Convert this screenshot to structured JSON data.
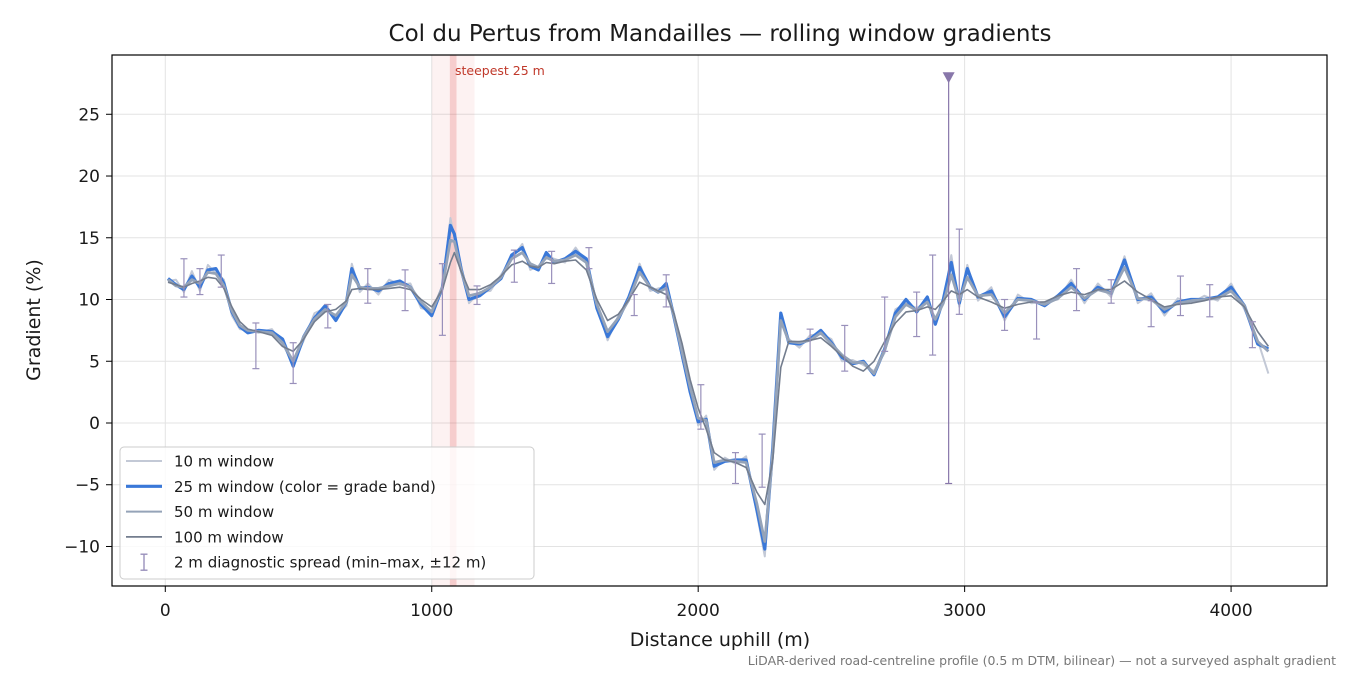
{
  "chart_data": {
    "type": "line",
    "title": "Col du Pertus from Mandailles — rolling window gradients",
    "xlabel": "Distance uphill (m)",
    "ylabel": "Gradient (%)",
    "xlim": [
      -200,
      4360
    ],
    "ylim": [
      -13.2,
      29.8
    ],
    "xticks": [
      0,
      1000,
      2000,
      3000,
      4000
    ],
    "yticks": [
      -10,
      -5,
      0,
      5,
      10,
      15,
      20,
      25
    ],
    "ytick_labels": [
      "−10",
      "−5",
      "0",
      "5",
      "10",
      "15",
      "20",
      "25"
    ],
    "grid": true,
    "legend_position": "lower-left",
    "footnote": "LiDAR-derived road-centreline profile (0.5 m DTM, bilinear) — not a surveyed asphalt gradient",
    "steepest_annotation": {
      "label": "steepest 25 m",
      "x_start": 1068,
      "x_end": 1093,
      "color": "#d62728"
    },
    "spike_marker": {
      "x": 2940,
      "y": 28.0,
      "low": -4.9,
      "high": 28.0,
      "color": "#8877aa"
    },
    "colors": {
      "w10": "#c3c9d6",
      "w25": "#3a78d8",
      "w50": "#95a3b8",
      "w100": "#737d8e",
      "errorbar": "#9990bb"
    },
    "legend": [
      {
        "key": "w10",
        "label": "10 m window"
      },
      {
        "key": "w25",
        "label": "25 m window (color = grade band)"
      },
      {
        "key": "w50",
        "label": "50 m window"
      },
      {
        "key": "w100",
        "label": "100 m window"
      },
      {
        "key": "errorbar",
        "label": "2 m diagnostic spread (min–max, ±12 m)"
      }
    ],
    "profile": {
      "x": [
        10,
        40,
        70,
        100,
        130,
        160,
        190,
        220,
        250,
        280,
        310,
        350,
        400,
        440,
        480,
        520,
        560,
        600,
        640,
        680,
        700,
        730,
        760,
        800,
        840,
        880,
        920,
        960,
        1000,
        1040,
        1070,
        1085,
        1110,
        1140,
        1180,
        1220,
        1260,
        1300,
        1340,
        1370,
        1400,
        1430,
        1460,
        1500,
        1540,
        1580,
        1620,
        1660,
        1700,
        1740,
        1780,
        1820,
        1850,
        1880,
        1910,
        1940,
        1970,
        2000,
        2030,
        2060,
        2100,
        2140,
        2180,
        2220,
        2250,
        2280,
        2310,
        2340,
        2380,
        2420,
        2460,
        2500,
        2540,
        2580,
        2620,
        2660,
        2700,
        2740,
        2780,
        2820,
        2860,
        2890,
        2920,
        2950,
        2980,
        3010,
        3050,
        3100,
        3150,
        3200,
        3250,
        3300,
        3350,
        3400,
        3450,
        3500,
        3550,
        3600,
        3650,
        3700,
        3750,
        3800,
        3850,
        3900,
        3950,
        4000,
        4050,
        4100,
        4140
      ],
      "y25": [
        11.7,
        11.2,
        10.8,
        11.9,
        11.0,
        12.4,
        12.5,
        11.3,
        9.0,
        7.8,
        7.3,
        7.5,
        7.4,
        6.8,
        4.6,
        7.0,
        8.5,
        9.5,
        8.3,
        9.8,
        12.5,
        10.9,
        11.0,
        10.7,
        11.3,
        11.5,
        11.0,
        9.6,
        8.7,
        11.0,
        16.0,
        15.3,
        12.5,
        10.0,
        10.3,
        11.0,
        11.7,
        13.6,
        14.2,
        12.7,
        12.4,
        13.8,
        13.0,
        13.3,
        13.9,
        13.3,
        9.3,
        7.0,
        8.4,
        10.2,
        12.6,
        11.0,
        10.6,
        11.3,
        8.5,
        5.5,
        2.5,
        0.1,
        0.3,
        -3.5,
        -3.1,
        -3.0,
        -3.0,
        -7.0,
        -10.2,
        -2.0,
        8.9,
        6.5,
        6.4,
        6.8,
        7.5,
        6.5,
        5.3,
        4.8,
        5.0,
        3.9,
        6.0,
        8.9,
        10.0,
        9.0,
        10.2,
        8.0,
        10.0,
        13.0,
        9.7,
        12.5,
        10.2,
        10.7,
        8.6,
        10.1,
        10.0,
        9.5,
        10.3,
        11.3,
        10.0,
        11.0,
        10.5,
        13.2,
        10.0,
        10.2,
        9.0,
        9.8,
        10.0,
        10.0,
        10.2,
        11.0,
        9.5,
        6.4,
        6.0
      ],
      "y10": [
        11.5,
        11.6,
        10.6,
        12.3,
        10.7,
        12.8,
        12.1,
        11.6,
        8.7,
        7.6,
        7.5,
        7.3,
        7.6,
        6.4,
        4.8,
        6.7,
        8.9,
        9.3,
        8.6,
        9.5,
        12.9,
        10.6,
        11.3,
        10.4,
        11.6,
        11.2,
        11.3,
        9.3,
        9.1,
        10.7,
        16.6,
        15.0,
        12.8,
        9.7,
        10.6,
        10.7,
        12.0,
        13.3,
        14.5,
        12.4,
        12.7,
        13.5,
        13.3,
        13.0,
        14.2,
        13.0,
        9.6,
        6.7,
        8.7,
        9.9,
        12.9,
        10.7,
        10.9,
        11.0,
        8.8,
        5.2,
        2.8,
        -0.2,
        0.6,
        -3.8,
        -2.8,
        -3.3,
        -2.7,
        -7.3,
        -10.8,
        -1.7,
        8.6,
        6.8,
        6.1,
        7.1,
        7.2,
        6.8,
        5.0,
        5.1,
        4.7,
        4.2,
        5.7,
        9.2,
        9.7,
        9.3,
        9.9,
        8.3,
        9.7,
        13.6,
        9.4,
        12.8,
        9.9,
        11.0,
        8.3,
        10.4,
        9.7,
        9.8,
        10.0,
        11.6,
        9.7,
        11.3,
        10.2,
        13.5,
        9.7,
        10.5,
        8.7,
        10.1,
        9.7,
        10.3,
        9.9,
        11.3,
        9.2,
        6.7,
        4.0
      ],
      "y50": [
        11.6,
        11.1,
        11.0,
        11.6,
        11.3,
        12.2,
        12.1,
        11.1,
        9.1,
        7.9,
        7.5,
        7.4,
        7.3,
        6.5,
        5.0,
        7.0,
        8.4,
        9.2,
        8.7,
        9.8,
        12.0,
        11.0,
        10.9,
        10.9,
        11.1,
        11.3,
        11.0,
        9.8,
        9.0,
        11.0,
        14.8,
        14.7,
        12.4,
        10.3,
        10.5,
        11.0,
        11.8,
        13.3,
        13.8,
        12.9,
        12.6,
        13.4,
        13.1,
        13.2,
        13.6,
        13.0,
        9.6,
        7.4,
        8.5,
        10.0,
        12.2,
        11.0,
        10.6,
        10.9,
        8.6,
        5.7,
        2.9,
        0.4,
        0.2,
        -3.2,
        -3.0,
        -3.1,
        -3.2,
        -6.5,
        -9.6,
        -2.4,
        8.3,
        6.6,
        6.5,
        6.7,
        7.3,
        6.4,
        5.5,
        4.9,
        4.9,
        4.0,
        5.9,
        8.6,
        9.6,
        9.1,
        9.8,
        8.4,
        9.7,
        12.0,
        9.9,
        11.8,
        10.3,
        10.4,
        8.9,
        10.0,
        9.9,
        9.6,
        10.1,
        11.0,
        10.1,
        10.8,
        10.5,
        12.6,
        10.1,
        10.0,
        9.2,
        9.7,
        9.9,
        10.0,
        10.1,
        10.7,
        9.5,
        6.6,
        5.8
      ],
      "y100": [
        11.4,
        11.2,
        11.0,
        11.3,
        11.5,
        11.8,
        11.7,
        10.9,
        9.4,
        8.2,
        7.6,
        7.4,
        7.1,
        6.2,
        5.8,
        6.8,
        8.2,
        9.0,
        9.2,
        9.9,
        10.8,
        10.9,
        10.8,
        10.8,
        10.9,
        11.0,
        10.8,
        10.0,
        9.4,
        10.8,
        13.0,
        13.8,
        12.3,
        10.8,
        10.8,
        11.2,
        11.9,
        12.8,
        13.1,
        12.7,
        12.6,
        13.0,
        12.9,
        13.1,
        13.2,
        12.4,
        10.0,
        8.3,
        8.8,
        10.0,
        11.4,
        11.0,
        10.7,
        10.4,
        8.8,
        6.4,
        3.5,
        1.2,
        -0.5,
        -2.4,
        -3.0,
        -3.2,
        -3.6,
        -5.6,
        -6.6,
        -3.0,
        4.5,
        6.6,
        6.6,
        6.7,
        6.9,
        6.2,
        5.4,
        4.6,
        4.2,
        5.0,
        6.6,
        8.1,
        9.0,
        9.1,
        9.4,
        9.2,
        9.9,
        10.7,
        10.4,
        10.8,
        10.2,
        9.8,
        9.3,
        9.6,
        9.8,
        9.8,
        10.3,
        10.6,
        10.4,
        10.8,
        10.8,
        11.5,
        10.6,
        10.0,
        9.4,
        9.6,
        9.7,
        9.9,
        10.2,
        10.3,
        9.4,
        7.4,
        6.2
      ]
    },
    "error_bars": [
      {
        "x": 70,
        "low": 10.2,
        "high": 13.3
      },
      {
        "x": 130,
        "low": 10.4,
        "high": 12.5
      },
      {
        "x": 210,
        "low": 11.0,
        "high": 13.6
      },
      {
        "x": 340,
        "low": 4.4,
        "high": 8.1
      },
      {
        "x": 480,
        "low": 3.2,
        "high": 6.5
      },
      {
        "x": 610,
        "low": 7.7,
        "high": 9.6
      },
      {
        "x": 760,
        "low": 9.7,
        "high": 12.5
      },
      {
        "x": 900,
        "low": 9.1,
        "high": 12.4
      },
      {
        "x": 1040,
        "low": 7.1,
        "high": 12.9
      },
      {
        "x": 1170,
        "low": 9.6,
        "high": 11.1
      },
      {
        "x": 1310,
        "low": 11.4,
        "high": 14.0
      },
      {
        "x": 1450,
        "low": 11.3,
        "high": 13.9
      },
      {
        "x": 1590,
        "low": 12.5,
        "high": 14.2
      },
      {
        "x": 1760,
        "low": 8.7,
        "high": 10.4
      },
      {
        "x": 1880,
        "low": 9.4,
        "high": 12.0
      },
      {
        "x": 2010,
        "low": -0.5,
        "high": 3.1
      },
      {
        "x": 2140,
        "low": -4.9,
        "high": -2.4
      },
      {
        "x": 2240,
        "low": -5.2,
        "high": -0.9
      },
      {
        "x": 2420,
        "low": 4.0,
        "high": 7.6
      },
      {
        "x": 2550,
        "low": 4.2,
        "high": 7.9
      },
      {
        "x": 2700,
        "low": 5.8,
        "high": 10.2
      },
      {
        "x": 2820,
        "low": 7.0,
        "high": 10.6
      },
      {
        "x": 2880,
        "low": 5.5,
        "high": 13.6
      },
      {
        "x": 2980,
        "low": 8.8,
        "high": 15.7
      },
      {
        "x": 3150,
        "low": 7.5,
        "high": 10.0
      },
      {
        "x": 3270,
        "low": 6.8,
        "high": 9.8
      },
      {
        "x": 3420,
        "low": 9.1,
        "high": 12.5
      },
      {
        "x": 3550,
        "low": 9.7,
        "high": 11.6
      },
      {
        "x": 3700,
        "low": 7.8,
        "high": 9.9
      },
      {
        "x": 3810,
        "low": 8.7,
        "high": 11.9
      },
      {
        "x": 3920,
        "low": 8.6,
        "high": 11.2
      },
      {
        "x": 4080,
        "low": 6.1,
        "high": 8.2
      }
    ]
  }
}
